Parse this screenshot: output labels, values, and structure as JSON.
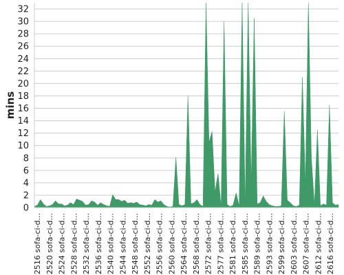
{
  "chart_data": {
    "type": "area",
    "title": "",
    "xlabel": "",
    "ylabel": "mins",
    "ylim": [
      0,
      33
    ],
    "yticks": [
      0,
      2,
      4,
      6,
      8,
      10,
      12,
      14,
      16,
      18,
      20,
      22,
      24,
      26,
      28,
      30,
      32
    ],
    "grid": "horizontal",
    "legend": "none",
    "color": "#3f9a68",
    "x_tick_labels": [
      "#2516 sofa-ci-d...",
      "#2520 sofa-ci-d...",
      "#2524 sofa-ci-d...",
      "#2528 sofa-ci-d...",
      "#2532 sofa-ci-d...",
      "#2536 sofa-ci-d...",
      "#2540 sofa-ci-d...",
      "#2544 sofa-ci-d...",
      "#2548 sofa-ci-d...",
      "#2552 sofa-ci-d...",
      "#2556 sofa-ci-d...",
      "#2560 sofa-ci-d...",
      "#2564 sofa-ci-d...",
      "#2568 sofa-ci-d...",
      "#2572 sofa-ci-d...",
      "#2577 sofa-ci-d...",
      "#2581 sofa-ci-d...",
      "#2585 sofa-ci-d...",
      "#2589 sofa-ci-d...",
      "#2593 sofa-ci-d...",
      "#2599 sofa-ci-d...",
      "#2603 sofa-ci-d...",
      "#2607 sofa-ci-d...",
      "#2612 sofa-ci-d...",
      "#2616 sofa-ci-d..."
    ],
    "values": [
      0.2,
      0.4,
      1.3,
      0.6,
      0.2,
      0.3,
      0.5,
      1.1,
      0.6,
      0.6,
      0.3,
      0.4,
      0.8,
      0.5,
      1.4,
      1.2,
      1.0,
      0.4,
      0.5,
      1.1,
      0.9,
      0.4,
      0.8,
      0.5,
      0.3,
      0.2,
      2.1,
      1.3,
      1.3,
      1.0,
      1.2,
      0.7,
      0.8,
      0.7,
      0.9,
      0.5,
      0.4,
      0.3,
      0.5,
      0.4,
      1.3,
      0.9,
      1.1,
      0.5,
      0.2,
      0.1,
      0.2,
      8.1,
      0.5,
      0.3,
      0.5,
      18.0,
      0.6,
      0.8,
      1.3,
      0.5,
      0.2,
      33.0,
      10.5,
      12.3,
      2.6,
      5.5,
      0.2,
      30.0,
      0.5,
      0.2,
      0.4,
      2.4,
      0.3,
      33.0,
      0.6,
      33.0,
      4.0,
      30.5,
      0.6,
      0.8,
      1.9,
      1.0,
      0.5,
      0.3,
      0.2,
      0.2,
      0.3,
      15.5,
      1.2,
      0.8,
      0.3,
      0.2,
      0.4,
      21.0,
      4.0,
      33.0,
      8.0,
      0.5,
      12.5,
      0.3,
      0.6,
      0.4,
      16.5,
      0.8,
      0.4,
      0.5
    ]
  }
}
